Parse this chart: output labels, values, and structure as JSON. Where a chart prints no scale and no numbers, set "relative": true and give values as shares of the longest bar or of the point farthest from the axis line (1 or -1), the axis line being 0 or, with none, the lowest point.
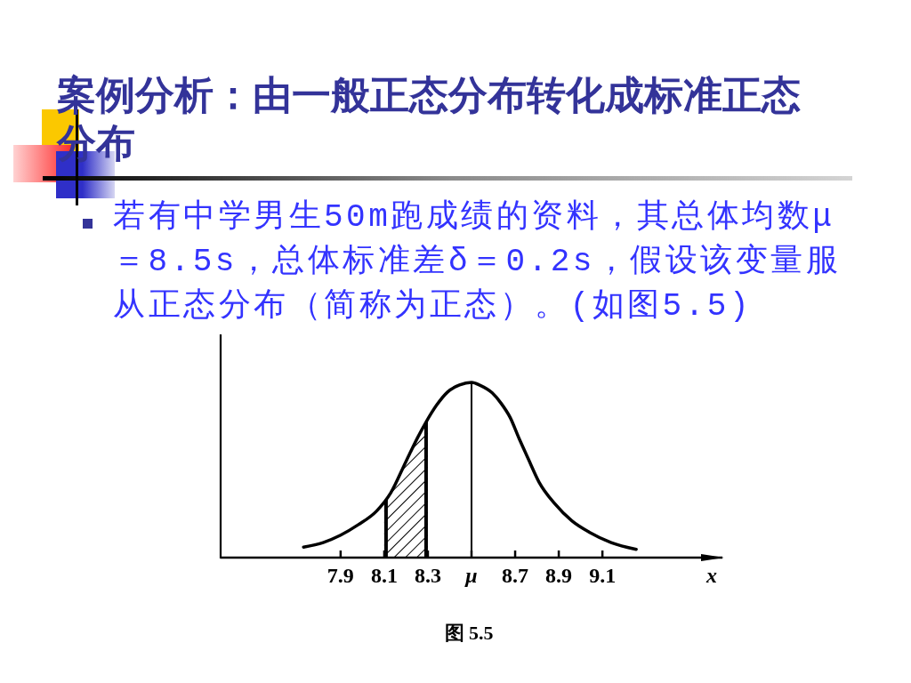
{
  "chart_data": {
    "type": "line",
    "title": "案例分析：由一般正态分布转化成标准正态分布",
    "annotations": [
      "若有中学男生50m跑成绩的资料，其总体均数μ＝8.5s，总体标准差δ＝0.2s，假设该变量服从正态分布（简称为正态）。(如图5.5)",
      "图 5.5"
    ],
    "xlabel": "x",
    "x": [
      7.73,
      7.82,
      7.9,
      7.98,
      8.065,
      8.13,
      8.2,
      8.255,
      8.29,
      8.34,
      8.39,
      8.445,
      8.5,
      8.54,
      8.595,
      8.636,
      8.677,
      8.718,
      8.758,
      8.81,
      8.88,
      8.96,
      9.04,
      9.14,
      9.255
    ],
    "values": [
      0.06,
      0.086,
      0.128,
      0.187,
      0.266,
      0.37,
      0.55,
      0.69,
      0.77,
      0.87,
      0.945,
      0.985,
      1.0,
      0.983,
      0.94,
      0.88,
      0.8,
      0.68,
      0.57,
      0.43,
      0.31,
      0.21,
      0.145,
      0.086,
      0.047
    ],
    "color": "#000000",
    "relative": true,
    "xlim": [
      7.35,
      9.65
    ],
    "xticks": [
      7.9,
      8.1,
      8.3,
      {
        "value": 8.5,
        "label": "μ"
      },
      8.7,
      8.9,
      9.1
    ],
    "bands": [
      {
        "axis": "x",
        "from": 8.1,
        "to": 8.3,
        "color": "#000000"
      }
    ],
    "ref_lines": [
      {
        "axis": "x",
        "value": 8.5,
        "color": "#000000"
      }
    ]
  }
}
